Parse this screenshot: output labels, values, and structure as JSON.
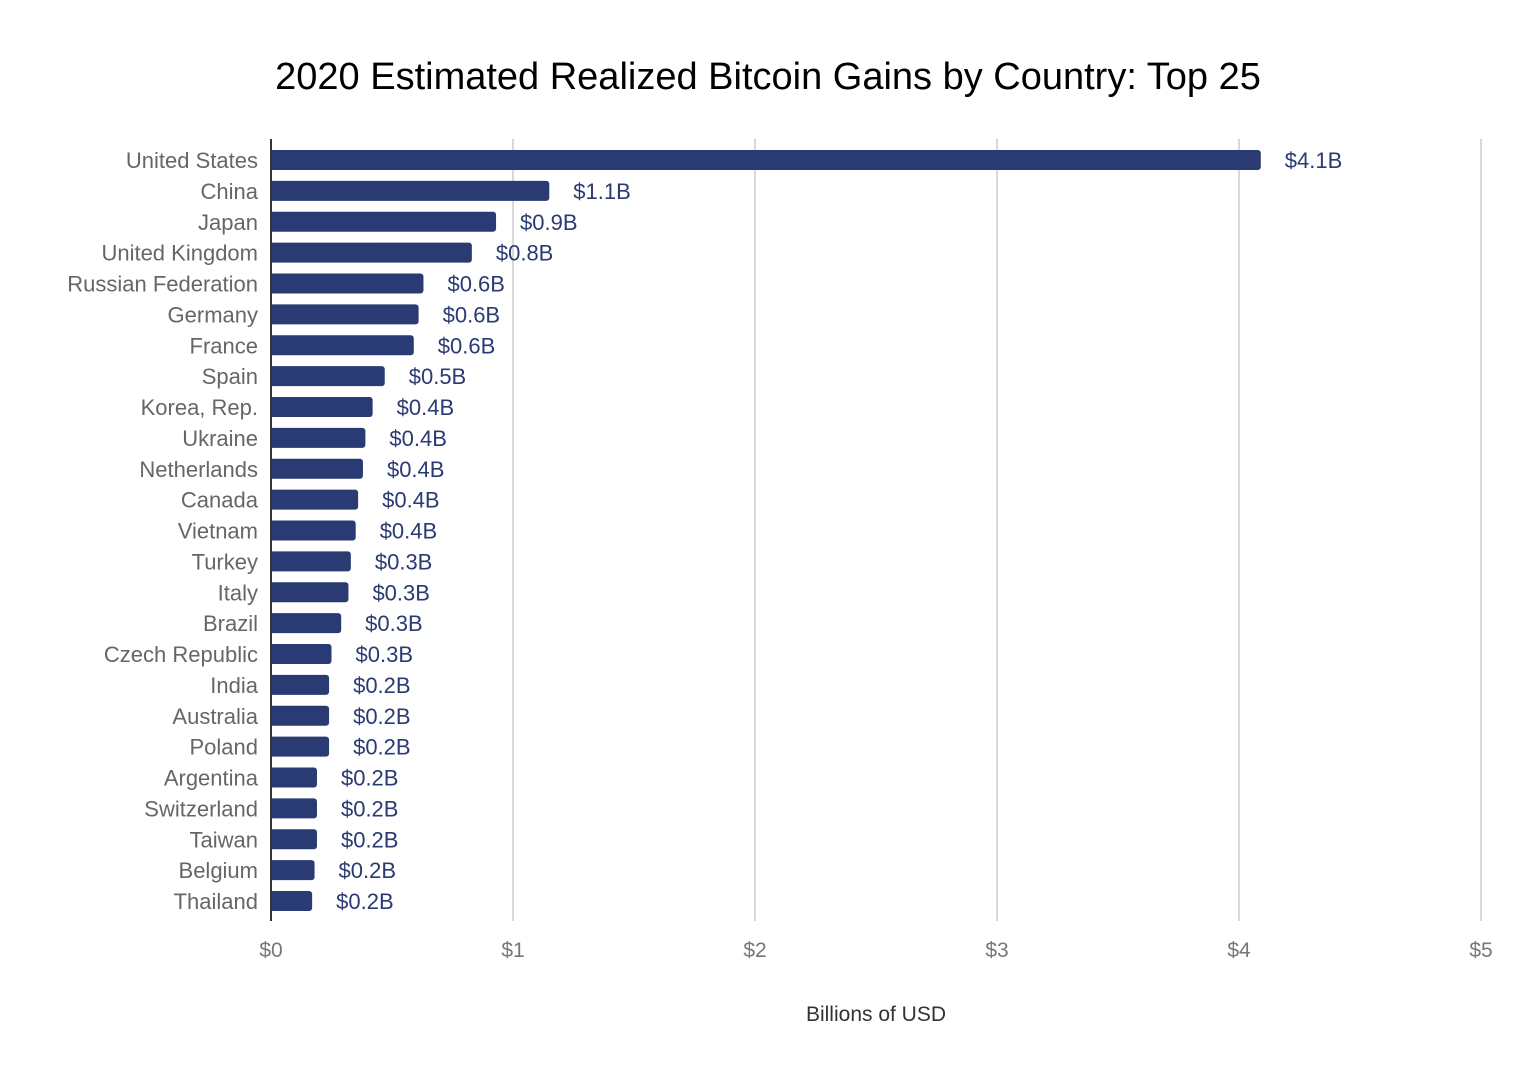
{
  "chart_data": {
    "type": "bar",
    "orientation": "horizontal",
    "title": "2020 Estimated Realized Bitcoin Gains by Country: Top 25",
    "xlabel": "Billions of USD",
    "ylabel": "",
    "xlim": [
      0,
      5
    ],
    "xticks": [
      0,
      1,
      2,
      3,
      4,
      5
    ],
    "xtick_labels": [
      "$0",
      "$1",
      "$2",
      "$3",
      "$4",
      "$5"
    ],
    "grid": "vertical",
    "bar_color": "#2a3a72",
    "categories": [
      "United States",
      "China",
      "Japan",
      "United Kingdom",
      "Russian Federation",
      "Germany",
      "France",
      "Spain",
      "Korea, Rep.",
      "Ukraine",
      "Netherlands",
      "Canada",
      "Vietnam",
      "Turkey",
      "Italy",
      "Brazil",
      "Czech Republic",
      "India",
      "Australia",
      "Poland",
      "Argentina",
      "Switzerland",
      "Taiwan",
      "Belgium",
      "Thailand"
    ],
    "values": [
      4.09,
      1.15,
      0.93,
      0.83,
      0.63,
      0.61,
      0.59,
      0.47,
      0.42,
      0.39,
      0.38,
      0.36,
      0.35,
      0.33,
      0.32,
      0.29,
      0.25,
      0.24,
      0.24,
      0.24,
      0.19,
      0.19,
      0.19,
      0.18,
      0.17
    ],
    "data_labels": [
      "$4.1B",
      "$1.1B",
      "$0.9B",
      "$0.8B",
      "$0.6B",
      "$0.6B",
      "$0.6B",
      "$0.5B",
      "$0.4B",
      "$0.4B",
      "$0.4B",
      "$0.4B",
      "$0.4B",
      "$0.3B",
      "$0.3B",
      "$0.3B",
      "$0.3B",
      "$0.2B",
      "$0.2B",
      "$0.2B",
      "$0.2B",
      "$0.2B",
      "$0.2B",
      "$0.2B",
      "$0.2B"
    ]
  }
}
